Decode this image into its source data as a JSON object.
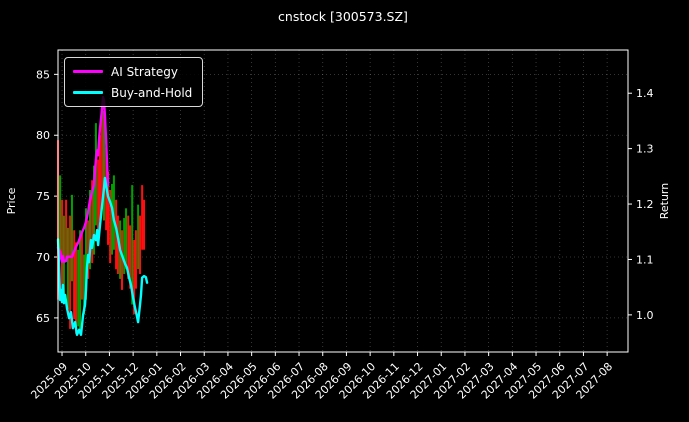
{
  "chart_data": {
    "type": "line",
    "title": "cnstock [300573.SZ]",
    "background": "#000000",
    "text_color": "#ffffff",
    "grid": {
      "show": true,
      "color": "#ffffff",
      "opacity": 0.28,
      "dash": "1,3"
    },
    "x_axis": {
      "min": -0.17,
      "max": 23.88,
      "tick_rotation": -45,
      "tick_labels": [
        "2025-09",
        "2025-10",
        "2025-11",
        "2025-12",
        "2026-01",
        "2026-02",
        "2026-03",
        "2026-04",
        "2026-05",
        "2026-06",
        "2026-07",
        "2026-08",
        "2026-09",
        "2026-10",
        "2026-11",
        "2026-12",
        "2027-01",
        "2027-02",
        "2027-03",
        "2027-04",
        "2027-05",
        "2027-06",
        "2027-07",
        "2027-08"
      ]
    },
    "left_axis": {
      "label": "Price",
      "ticks": [
        65,
        70,
        75,
        80,
        85
      ],
      "range": [
        62.2,
        87.0
      ]
    },
    "right_axis": {
      "label": "Return",
      "ticks": [
        1.0,
        1.1,
        1.2,
        1.3,
        1.4
      ],
      "range": [
        0.933,
        1.478
      ]
    },
    "legend": {
      "position": "upper-left"
    },
    "series": [
      {
        "name": "AI Strategy",
        "color": "#ff00ff",
        "axis": "right",
        "x": [
          -0.17,
          -0.08,
          -0.04,
          0.0,
          0.04,
          0.08,
          0.17,
          0.21,
          0.42,
          0.51,
          0.59,
          0.68,
          0.76,
          0.84,
          0.93,
          1.01,
          1.1,
          1.18,
          1.27,
          1.35,
          1.39,
          1.43,
          1.48,
          1.52,
          1.56,
          1.6,
          1.65,
          1.69,
          1.73,
          1.77,
          1.81,
          1.86,
          1.9,
          1.94
        ],
        "y": [
          1.121,
          1.114,
          1.103,
          1.096,
          1.106,
          1.096,
          1.097,
          1.105,
          1.105,
          1.115,
          1.123,
          1.13,
          1.139,
          1.149,
          1.157,
          1.168,
          1.186,
          1.207,
          1.222,
          1.234,
          1.261,
          1.279,
          1.297,
          1.288,
          1.315,
          1.337,
          1.355,
          1.373,
          1.393,
          1.387,
          1.36,
          1.315,
          1.27,
          1.234
        ]
      },
      {
        "name": "Buy-and-Hold",
        "color": "#00ffff",
        "axis": "right",
        "x": [
          -0.17,
          -0.13,
          -0.08,
          -0.04,
          0.0,
          0.04,
          0.08,
          0.13,
          0.21,
          0.3,
          0.38,
          0.46,
          0.55,
          0.63,
          0.72,
          0.8,
          0.89,
          0.97,
          1.01,
          1.05,
          1.1,
          1.14,
          1.22,
          1.27,
          1.35,
          1.43,
          1.48,
          1.52,
          1.6,
          1.69,
          1.77,
          1.81,
          1.86,
          1.94,
          2.03,
          2.11,
          2.19,
          2.28,
          2.36,
          2.45,
          2.57,
          2.66,
          2.74,
          2.83,
          2.91,
          3.0,
          3.08,
          3.16,
          3.21,
          3.29,
          3.33,
          3.38,
          3.46,
          3.54,
          3.59
        ],
        "y": [
          1.136,
          1.095,
          1.027,
          1.045,
          1.023,
          1.054,
          1.021,
          1.036,
          1.012,
          0.994,
          1.005,
          0.976,
          0.987,
          0.964,
          0.973,
          0.964,
          1.0,
          1.018,
          1.045,
          1.085,
          1.108,
          1.095,
          1.135,
          1.121,
          1.144,
          1.135,
          1.153,
          1.126,
          1.162,
          1.198,
          1.229,
          1.247,
          1.234,
          1.214,
          1.204,
          1.193,
          1.171,
          1.157,
          1.139,
          1.117,
          1.103,
          1.092,
          1.085,
          1.067,
          1.054,
          1.031,
          1.013,
          0.998,
          0.987,
          1.018,
          1.036,
          1.067,
          1.07,
          1.068,
          1.058
        ]
      }
    ],
    "price_bars": {
      "axis": "left",
      "colors": {
        "up": "#00a000",
        "down": "#ff0f0f"
      },
      "bars": [
        [
          -0.17,
          66.5,
          79.6,
          "r"
        ],
        [
          -0.08,
          69.8,
          76.7,
          "g"
        ],
        [
          0.0,
          66.5,
          74.7,
          "r"
        ],
        [
          0.08,
          66.4,
          73.4,
          "g"
        ],
        [
          0.17,
          69.7,
          74.7,
          "r"
        ],
        [
          0.25,
          65.7,
          72.4,
          "g"
        ],
        [
          0.34,
          64.1,
          73.4,
          "r"
        ],
        [
          0.42,
          68.0,
          75.1,
          "g"
        ],
        [
          0.51,
          64.9,
          72.2,
          "r"
        ],
        [
          0.59,
          63.7,
          71.2,
          "r"
        ],
        [
          0.68,
          64.3,
          70.6,
          "g"
        ],
        [
          0.76,
          63.9,
          72.2,
          "g"
        ],
        [
          0.84,
          66.5,
          72.0,
          "r"
        ],
        [
          0.93,
          65.3,
          70.2,
          "g"
        ],
        [
          1.01,
          66.5,
          74.0,
          "g"
        ],
        [
          1.1,
          68.2,
          73.0,
          "r"
        ],
        [
          1.18,
          69.0,
          75.5,
          "g"
        ],
        [
          1.27,
          69.5,
          76.3,
          "r"
        ],
        [
          1.35,
          70.2,
          77.5,
          "g"
        ],
        [
          1.43,
          72.6,
          81.0,
          "g"
        ],
        [
          1.52,
          71.0,
          78.0,
          "r"
        ],
        [
          1.6,
          73.0,
          80.0,
          "r"
        ],
        [
          1.69,
          74.3,
          82.5,
          "r"
        ],
        [
          1.77,
          73.0,
          82.0,
          "g"
        ],
        [
          1.86,
          72.2,
          79.0,
          "r"
        ],
        [
          1.94,
          71.0,
          77.0,
          "r"
        ],
        [
          2.03,
          69.5,
          75.5,
          "r"
        ],
        [
          2.11,
          70.2,
          76.0,
          "g"
        ],
        [
          2.19,
          70.6,
          76.7,
          "g"
        ],
        [
          2.28,
          69.0,
          74.7,
          "r"
        ],
        [
          2.36,
          68.6,
          73.4,
          "r"
        ],
        [
          2.45,
          68.2,
          73.0,
          "g"
        ],
        [
          2.53,
          67.3,
          72.2,
          "r"
        ],
        [
          2.62,
          68.6,
          73.2,
          "g"
        ],
        [
          2.7,
          69.0,
          74.0,
          "g"
        ],
        [
          2.79,
          68.2,
          73.4,
          "r"
        ],
        [
          2.87,
          67.4,
          72.6,
          "r"
        ],
        [
          2.96,
          66.1,
          75.9,
          "g"
        ],
        [
          3.04,
          65.3,
          71.4,
          "r"
        ],
        [
          3.12,
          67.4,
          72.2,
          "r"
        ],
        [
          3.21,
          69.0,
          74.3,
          "g"
        ],
        [
          3.29,
          68.6,
          73.4,
          "r"
        ],
        [
          3.38,
          70.6,
          75.9,
          "r"
        ],
        [
          3.46,
          70.6,
          74.7,
          "r"
        ]
      ]
    }
  }
}
